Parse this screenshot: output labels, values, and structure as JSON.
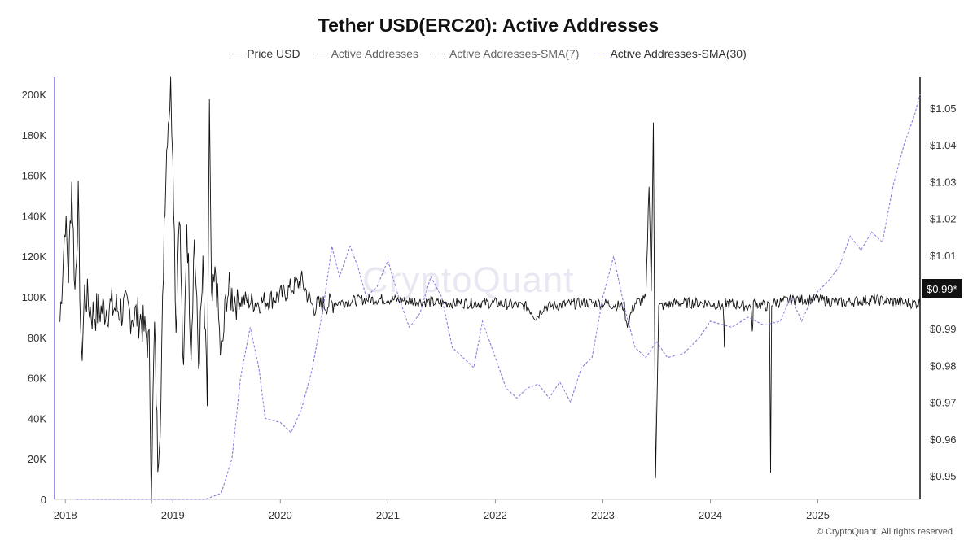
{
  "chart_data": {
    "type": "line",
    "title": "Tether USD(ERC20): Active Addresses",
    "legend": {
      "placement": "top-center",
      "items": [
        {
          "label": "Price USD",
          "active": true
        },
        {
          "label": "Active Addresses",
          "active": false
        },
        {
          "label": "Active Addresses-SMA(7)",
          "active": false
        },
        {
          "label": "Active Addresses-SMA(30)",
          "active": true
        }
      ]
    },
    "x_axis": {
      "ticks": [
        "2018",
        "2019",
        "2020",
        "2021",
        "2022",
        "2023",
        "2024",
        "2025"
      ],
      "range": [
        2017.9,
        2025.95
      ]
    },
    "y_left": {
      "ticks": [
        "0",
        "20K",
        "40K",
        "60K",
        "80K",
        "100K",
        "120K",
        "140K",
        "160K",
        "180K",
        "200K"
      ],
      "range": [
        0,
        200000
      ]
    },
    "y_right": {
      "ticks": [
        "$0.95",
        "$0.96",
        "$0.97",
        "$0.98",
        "$0.99",
        "$1.00",
        "$1.01",
        "$1.02",
        "$1.03",
        "$1.04",
        "$1.05"
      ],
      "range": [
        0.945,
        1.06
      ],
      "current_label": "$0.99*"
    },
    "grid": false,
    "series": [
      {
        "name": "Price USD",
        "axis": "right",
        "color": "#111111",
        "points": [
          [
            2017.95,
            0.992
          ],
          [
            2018.0,
            1.02
          ],
          [
            2018.03,
            1.005
          ],
          [
            2018.06,
            1.03
          ],
          [
            2018.09,
            1.0
          ],
          [
            2018.12,
            1.025
          ],
          [
            2018.15,
            0.98
          ],
          [
            2018.18,
            1.0
          ],
          [
            2018.25,
            0.994
          ],
          [
            2018.4,
            0.996
          ],
          [
            2018.55,
            0.995
          ],
          [
            2018.7,
            0.993
          ],
          [
            2018.78,
            0.985
          ],
          [
            2018.8,
            0.948
          ],
          [
            2018.83,
            0.99
          ],
          [
            2018.86,
            0.955
          ],
          [
            2018.89,
            0.97
          ],
          [
            2018.92,
            1.02
          ],
          [
            2018.95,
            1.045
          ],
          [
            2018.98,
            1.055
          ],
          [
            2019.0,
            1.04
          ],
          [
            2019.03,
            0.99
          ],
          [
            2019.06,
            1.025
          ],
          [
            2019.1,
            0.975
          ],
          [
            2019.13,
            1.02
          ],
          [
            2019.17,
            0.985
          ],
          [
            2019.2,
            1.015
          ],
          [
            2019.24,
            0.98
          ],
          [
            2019.28,
            1.005
          ],
          [
            2019.32,
            0.97
          ],
          [
            2019.34,
            1.05
          ],
          [
            2019.36,
            0.995
          ],
          [
            2019.4,
            1.005
          ],
          [
            2019.45,
            0.98
          ],
          [
            2019.5,
            1.0
          ],
          [
            2019.6,
            0.998
          ],
          [
            2019.8,
            0.997
          ],
          [
            2020.0,
            0.999
          ],
          [
            2020.2,
            1.003
          ],
          [
            2020.3,
            0.996
          ],
          [
            2020.5,
            0.997
          ],
          [
            2020.8,
            0.998
          ],
          [
            2021.0,
            0.998
          ],
          [
            2021.5,
            0.997
          ],
          [
            2022.0,
            0.997
          ],
          [
            2022.3,
            0.996
          ],
          [
            2022.38,
            0.993
          ],
          [
            2022.45,
            0.996
          ],
          [
            2022.8,
            0.997
          ],
          [
            2023.0,
            0.997
          ],
          [
            2023.2,
            0.996
          ],
          [
            2023.22,
            0.991
          ],
          [
            2023.3,
            0.997
          ],
          [
            2023.4,
            0.998
          ],
          [
            2023.43,
            1.03
          ],
          [
            2023.45,
            1.0
          ],
          [
            2023.47,
            1.045
          ],
          [
            2023.49,
            0.95
          ],
          [
            2023.52,
            0.996
          ],
          [
            2023.7,
            0.997
          ],
          [
            2024.0,
            0.997
          ],
          [
            2024.12,
            0.996
          ],
          [
            2024.13,
            0.985
          ],
          [
            2024.14,
            0.997
          ],
          [
            2024.38,
            0.996
          ],
          [
            2024.39,
            0.988
          ],
          [
            2024.4,
            0.997
          ],
          [
            2024.55,
            0.996
          ],
          [
            2024.56,
            0.95
          ],
          [
            2024.57,
            0.997
          ],
          [
            2024.8,
            0.998
          ],
          [
            2025.0,
            0.998
          ],
          [
            2025.2,
            0.997
          ],
          [
            2025.5,
            0.998
          ],
          [
            2025.8,
            0.997
          ],
          [
            2025.95,
            0.997
          ]
        ]
      },
      {
        "name": "Active Addresses-SMA(30)",
        "axis": "left",
        "color": "#8a7fe0",
        "points": [
          [
            2018.1,
            0
          ],
          [
            2019.0,
            0
          ],
          [
            2019.3,
            0
          ],
          [
            2019.45,
            3000
          ],
          [
            2019.55,
            20000
          ],
          [
            2019.63,
            60000
          ],
          [
            2019.72,
            85000
          ],
          [
            2019.8,
            65000
          ],
          [
            2019.86,
            40000
          ],
          [
            2020.0,
            38000
          ],
          [
            2020.1,
            33000
          ],
          [
            2020.2,
            45000
          ],
          [
            2020.3,
            65000
          ],
          [
            2020.4,
            95000
          ],
          [
            2020.48,
            125000
          ],
          [
            2020.55,
            110000
          ],
          [
            2020.65,
            125000
          ],
          [
            2020.72,
            115000
          ],
          [
            2020.8,
            100000
          ],
          [
            2020.9,
            105000
          ],
          [
            2021.0,
            118000
          ],
          [
            2021.1,
            100000
          ],
          [
            2021.2,
            85000
          ],
          [
            2021.3,
            92000
          ],
          [
            2021.4,
            110000
          ],
          [
            2021.5,
            100000
          ],
          [
            2021.6,
            75000
          ],
          [
            2021.7,
            70000
          ],
          [
            2021.8,
            65000
          ],
          [
            2021.88,
            88000
          ],
          [
            2022.0,
            70000
          ],
          [
            2022.1,
            55000
          ],
          [
            2022.2,
            50000
          ],
          [
            2022.3,
            55000
          ],
          [
            2022.4,
            57000
          ],
          [
            2022.5,
            50000
          ],
          [
            2022.6,
            58000
          ],
          [
            2022.7,
            48000
          ],
          [
            2022.8,
            65000
          ],
          [
            2022.9,
            70000
          ],
          [
            2023.0,
            100000
          ],
          [
            2023.1,
            120000
          ],
          [
            2023.2,
            95000
          ],
          [
            2023.3,
            75000
          ],
          [
            2023.4,
            70000
          ],
          [
            2023.5,
            78000
          ],
          [
            2023.6,
            70000
          ],
          [
            2023.75,
            72000
          ],
          [
            2023.9,
            80000
          ],
          [
            2024.0,
            88000
          ],
          [
            2024.2,
            85000
          ],
          [
            2024.35,
            90000
          ],
          [
            2024.5,
            86000
          ],
          [
            2024.65,
            88000
          ],
          [
            2024.75,
            100000
          ],
          [
            2024.85,
            88000
          ],
          [
            2024.95,
            100000
          ],
          [
            2025.1,
            108000
          ],
          [
            2025.2,
            115000
          ],
          [
            2025.3,
            130000
          ],
          [
            2025.4,
            123000
          ],
          [
            2025.5,
            132000
          ],
          [
            2025.6,
            127000
          ],
          [
            2025.7,
            155000
          ],
          [
            2025.8,
            175000
          ],
          [
            2025.9,
            190000
          ],
          [
            2025.95,
            200000
          ]
        ]
      }
    ]
  },
  "footer": {
    "watermark": "CryptoQuant",
    "copyright": "© CryptoQuant. All rights reserved"
  }
}
